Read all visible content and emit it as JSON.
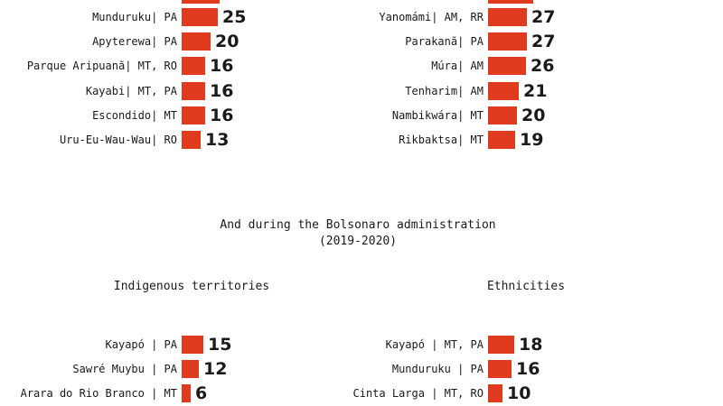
{
  "colors": {
    "bar": "#e03a1f",
    "text": "#1a1a1a"
  },
  "bolsonaro_section": {
    "title": "And during the Bolsonaro administration",
    "period": "(2019-2020)",
    "territories_heading": "Indigenous territories",
    "ethnicities_heading": "Ethnicities"
  },
  "chart_data": [
    {
      "type": "bar",
      "orientation": "horizontal",
      "categories": [
        "Munduruku| PA",
        "Apyterewa| PA",
        "Parque Aripuanã| MT, RO",
        "Kayabi| MT, PA",
        "Escondido| MT",
        "Uru-Eu-Wau-Wau| RO"
      ],
      "values": [
        25,
        20,
        16,
        16,
        16,
        13
      ]
    },
    {
      "type": "bar",
      "orientation": "horizontal",
      "categories": [
        "Yanomámi| AM, RR",
        "Parakanã| PA",
        "Múra| AM",
        "Tenharim| AM",
        "Nambikwára| MT",
        "Rikbaktsa| MT"
      ],
      "values": [
        27,
        27,
        26,
        21,
        20,
        19
      ]
    },
    {
      "type": "bar",
      "orientation": "horizontal",
      "title": "Indigenous territories",
      "categories": [
        "Kayapó | PA",
        "Sawré Muybu | PA",
        "Arara do Rio Branco | MT"
      ],
      "values": [
        15,
        12,
        6
      ]
    },
    {
      "type": "bar",
      "orientation": "horizontal",
      "title": "Ethnicities",
      "categories": [
        "Kayapó | MT, PA",
        "Munduruku | PA",
        "Cinta Larga | MT, RO"
      ],
      "values": [
        18,
        16,
        10
      ]
    }
  ]
}
